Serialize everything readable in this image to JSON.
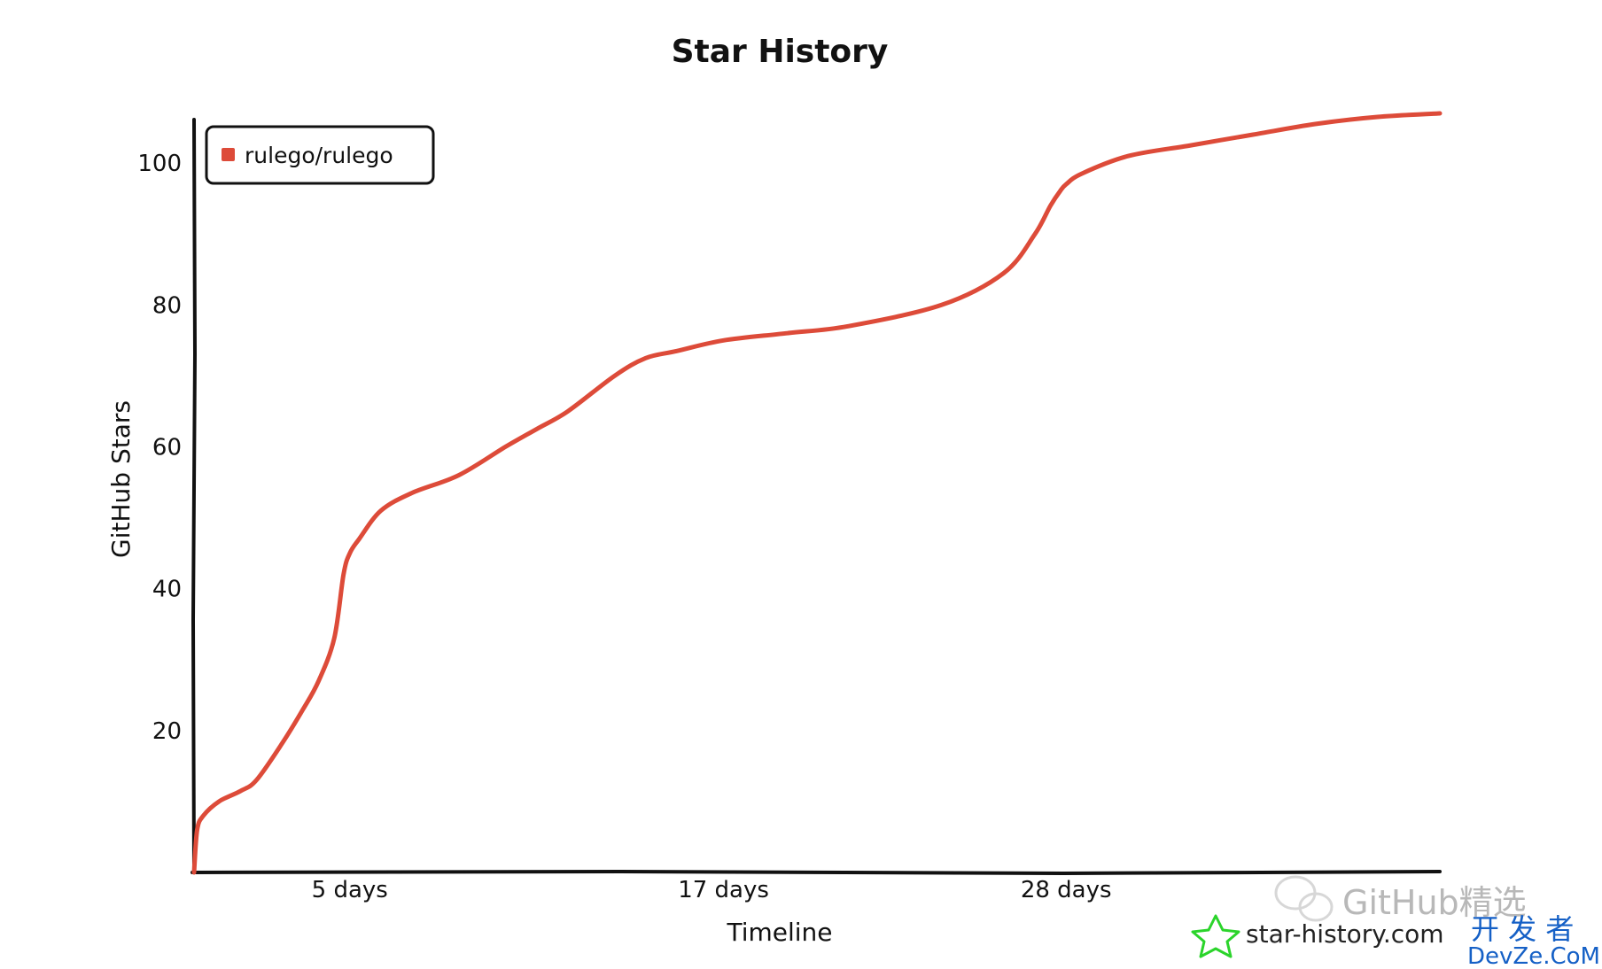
{
  "chart_data": {
    "type": "line",
    "title": "Star History",
    "xlabel": "Timeline",
    "ylabel": "GitHub Stars",
    "xlim": [
      0,
      40
    ],
    "ylim": [
      0,
      108
    ],
    "x_ticks": [
      {
        "value": 5,
        "label": "5 days"
      },
      {
        "value": 17,
        "label": "17 days"
      },
      {
        "value": 28,
        "label": "28 days"
      }
    ],
    "y_ticks": [
      20,
      40,
      60,
      80,
      100
    ],
    "grid": false,
    "legend_position": "top-left",
    "series": [
      {
        "name": "rulego/rulego",
        "color": "#dd4b39",
        "x": [
          0,
          0.1,
          0.3,
          0.8,
          1.5,
          2.0,
          2.8,
          3.5,
          4.0,
          4.5,
          4.8,
          5.0,
          5.3,
          6.0,
          7.0,
          8.5,
          10.0,
          11.0,
          12.0,
          13.5,
          14.5,
          15.5,
          17.0,
          19.0,
          21.0,
          24.0,
          26.0,
          27.0,
          27.5,
          27.8,
          28.0,
          28.5,
          30.0,
          32.0,
          34.0,
          36.0,
          38.0,
          40.0
        ],
        "values": [
          0,
          6,
          8,
          10,
          11.5,
          13,
          18,
          23,
          27,
          33,
          42,
          45,
          47,
          51,
          53.5,
          56,
          60,
          62.5,
          65,
          70,
          72.5,
          73.5,
          75,
          76,
          77,
          80,
          84.5,
          90,
          94,
          96,
          97,
          98.5,
          101,
          102.5,
          104,
          105.5,
          106.5,
          107
        ]
      }
    ]
  },
  "watermarks": {
    "site_text": "star-history.com",
    "logo_icon": "star-history-logo-icon",
    "brand_gray": "GitHub精选",
    "brand_blue_top": "开 发 者",
    "brand_blue_bottom": "DevZe.CoM",
    "colors": {
      "logo": "#2bd42b",
      "gray": "#b8b8b8",
      "blue": "#1560c6"
    }
  }
}
